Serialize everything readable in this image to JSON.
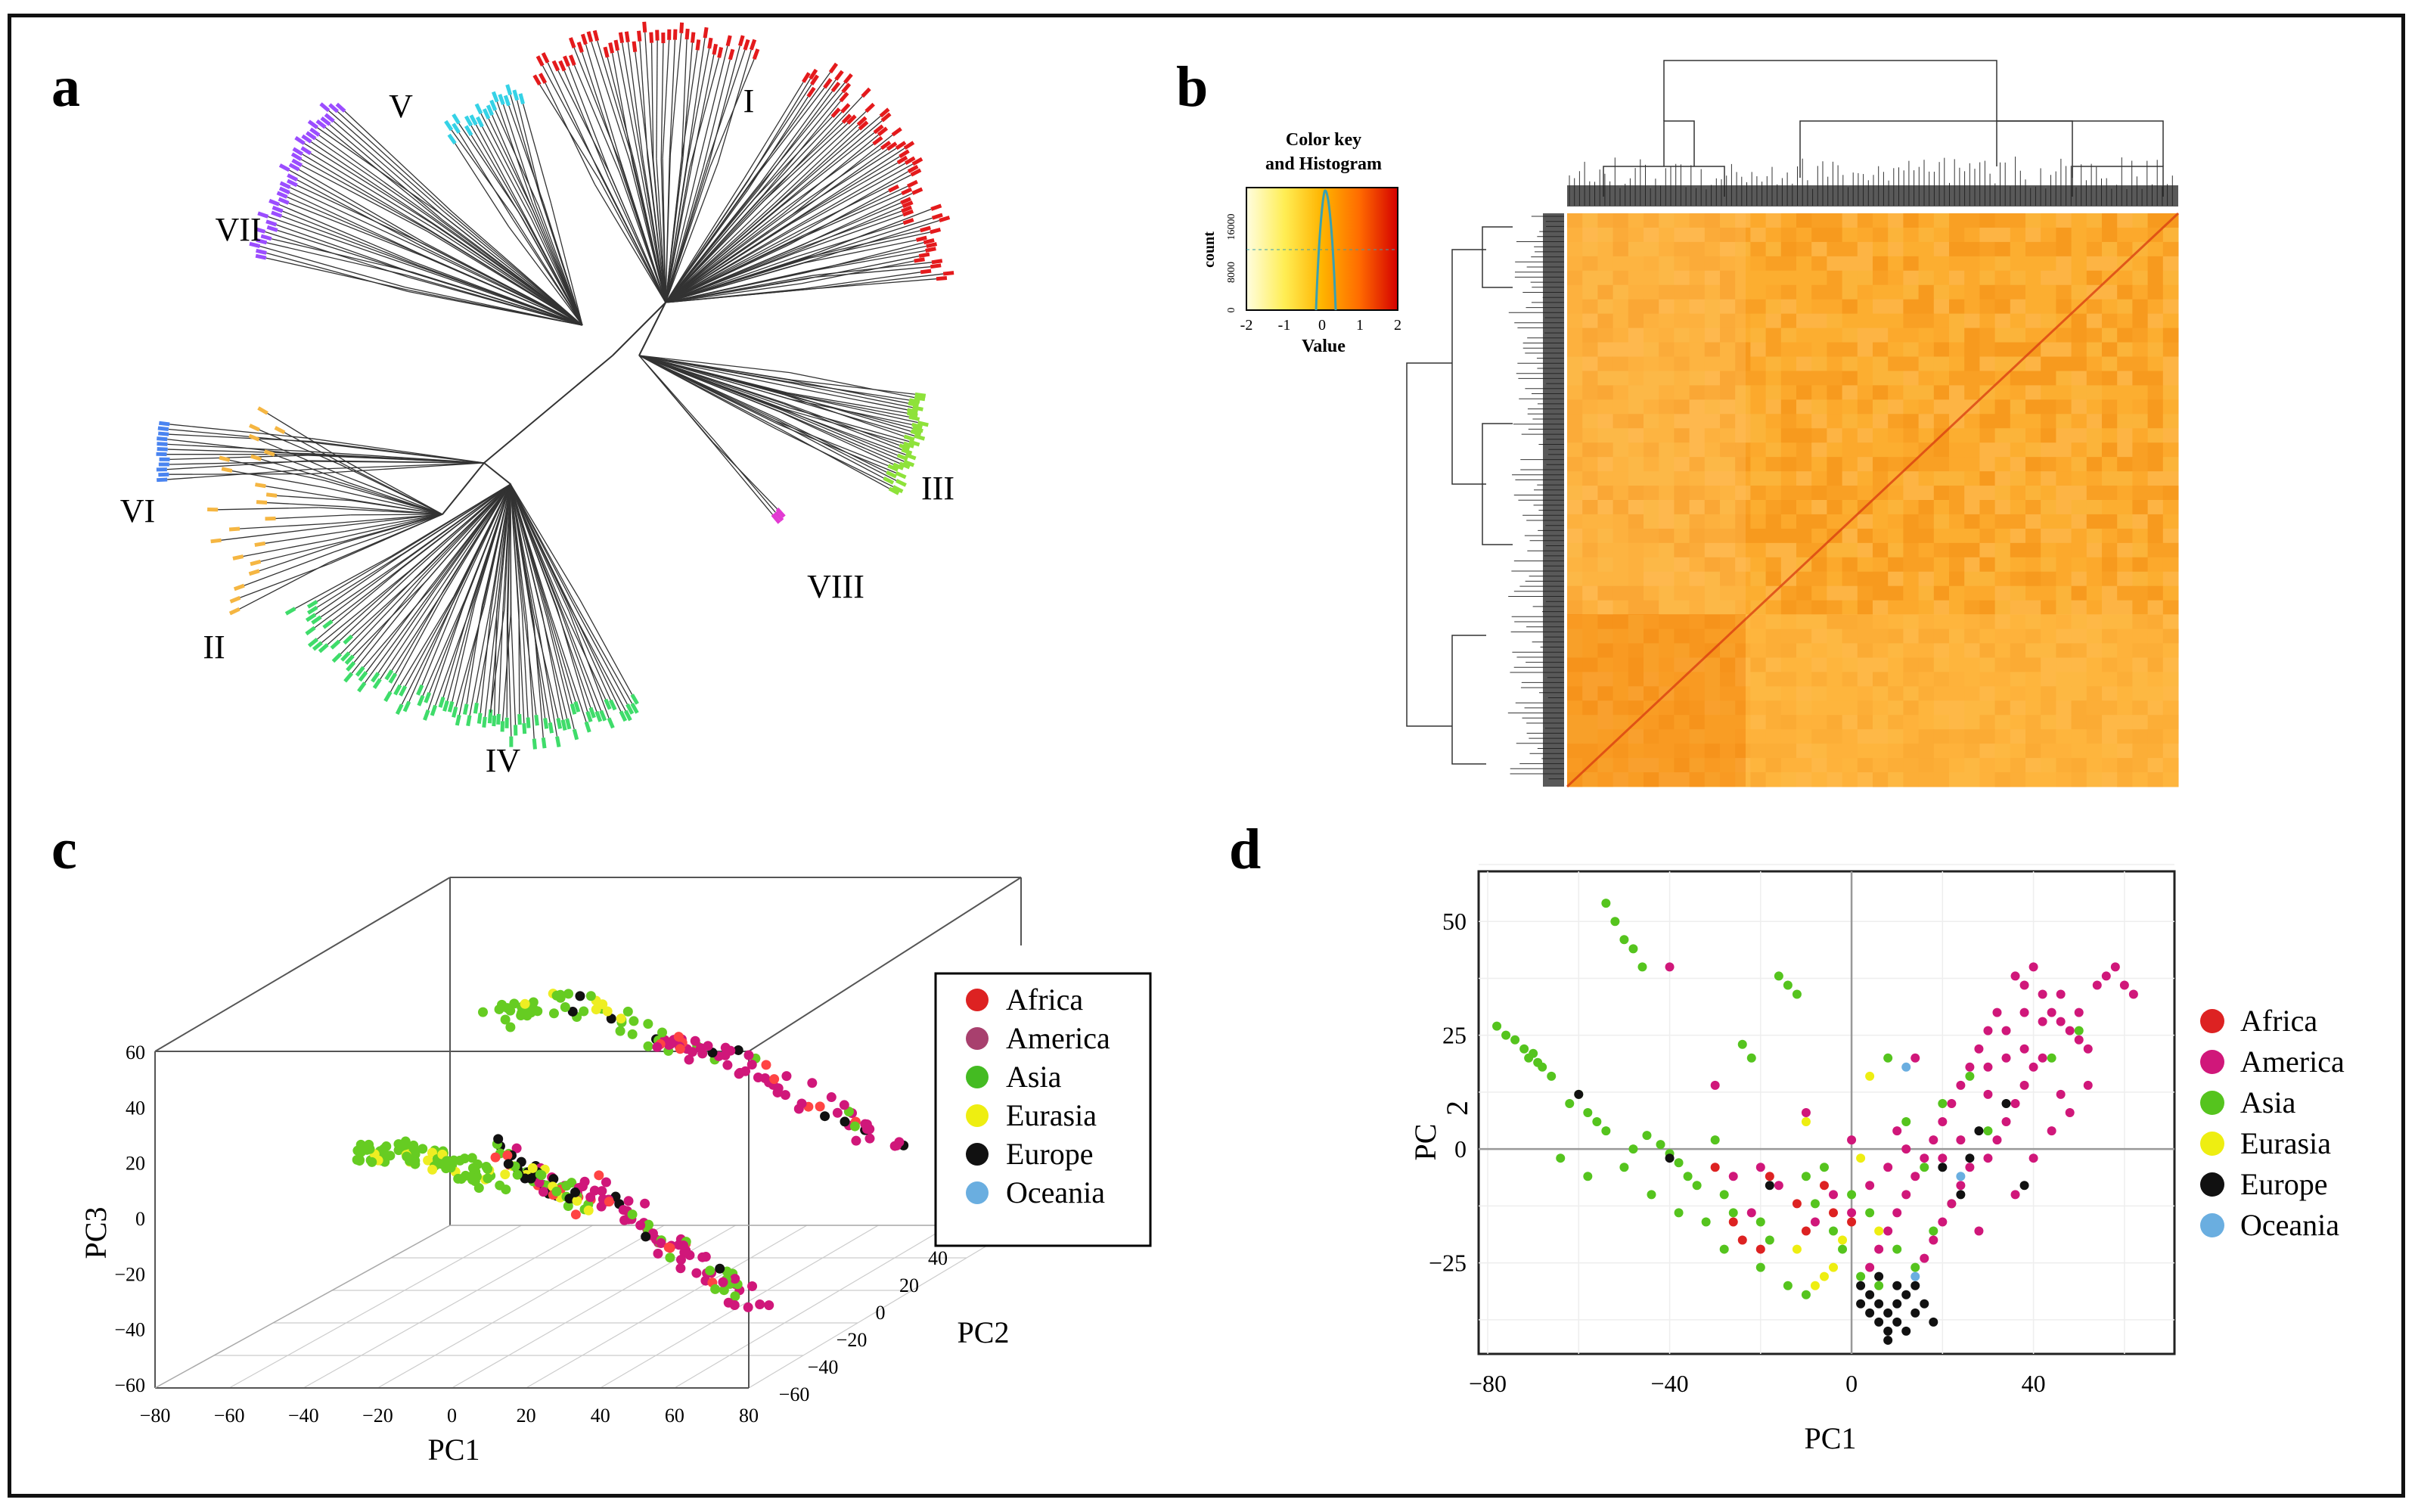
{
  "chart_data": [
    {
      "panel": "a",
      "type": "dendrogram",
      "title": "",
      "clades": [
        {
          "name": "I",
          "color": "#e41a1c"
        },
        {
          "name": "II",
          "color": "#f5b642"
        },
        {
          "name": "III",
          "color": "#8ee23a"
        },
        {
          "name": "IV",
          "color": "#3fdc6a"
        },
        {
          "name": "V",
          "color": "#35d2e6"
        },
        {
          "name": "VI",
          "color": "#4a84f0"
        },
        {
          "name": "VII",
          "color": "#9b4dff"
        },
        {
          "name": "VIII",
          "color": "#e23ad2"
        }
      ]
    },
    {
      "panel": "b",
      "type": "heatmap",
      "title": "Color key and Histogram",
      "key_title_line1": "Color key",
      "key_title_line2": "and Histogram",
      "key_xlabel": "Value",
      "key_ylabel": "count",
      "key_x_ticks": [
        "-2",
        "-1",
        "0",
        "1",
        "2"
      ],
      "key_y_ticks": [
        "0",
        "8000",
        "16000"
      ],
      "xlim": [
        -2,
        2
      ],
      "colors": [
        "#fff7a0",
        "#ffd21f",
        "#ff9a00",
        "#e83000",
        "#d40000"
      ]
    },
    {
      "panel": "c",
      "type": "scatter",
      "title": "",
      "xlabel": "PC1",
      "ylabel": "PC3",
      "zlabel": "PC2",
      "x_ticks": [
        "−80",
        "−60",
        "−40",
        "−20",
        "0",
        "20",
        "40",
        "60",
        "80"
      ],
      "y_ticks": [
        "60",
        "40",
        "20",
        "0",
        "−20",
        "−40",
        "−60"
      ],
      "z_ticks": [
        "40",
        "20",
        "0",
        "−20",
        "−40",
        "−60"
      ],
      "xlim": [
        -80,
        80
      ],
      "ylim": [
        -60,
        60
      ],
      "zlim": [
        -60,
        40
      ],
      "legend": [
        {
          "label": "Africa",
          "color": "#dd2222"
        },
        {
          "label": "America",
          "color": "#a8406e"
        },
        {
          "label": "Asia",
          "color": "#44bb22"
        },
        {
          "label": "Eurasia",
          "color": "#eeee11"
        },
        {
          "label": "Europe",
          "color": "#111111"
        },
        {
          "label": "Oceania",
          "color": "#6aaee0"
        }
      ],
      "series_colors": {
        "Africa": "#ff4444",
        "America": "#d0177a",
        "Asia": "#66cc22",
        "Eurasia": "#eeee22",
        "Europe": "#111111",
        "Oceania": "#6aaee0"
      }
    },
    {
      "panel": "d",
      "type": "scatter",
      "title": "",
      "xlabel": "PC1",
      "ylabel_a": "PC",
      "ylabel_b": "2",
      "x_ticks": [
        "−80",
        "−40",
        "0",
        "40"
      ],
      "x_tick_values": [
        -80,
        -40,
        0,
        40
      ],
      "y_ticks": [
        "50",
        "25",
        "0",
        "−25"
      ],
      "y_tick_values": [
        50,
        25,
        0,
        -25
      ],
      "xlim": [
        -82,
        71
      ],
      "ylim": [
        -45,
        61
      ],
      "legend": [
        {
          "label": "Africa",
          "color": "#dd2222"
        },
        {
          "label": "America",
          "color": "#d0177a"
        },
        {
          "label": "Asia",
          "color": "#55c41e"
        },
        {
          "label": "Eurasia",
          "color": "#eeee11"
        },
        {
          "label": "Europe",
          "color": "#111111"
        },
        {
          "label": "Oceania",
          "color": "#6aaee0"
        }
      ],
      "series": [
        {
          "name": "Asia",
          "points": [
            [
              -78,
              27
            ],
            [
              -76,
              25
            ],
            [
              -74,
              24
            ],
            [
              -72,
              22
            ],
            [
              -71,
              20
            ],
            [
              -70,
              21
            ],
            [
              -69,
              19
            ],
            [
              -68,
              18
            ],
            [
              -60,
              12
            ],
            [
              -58,
              8
            ],
            [
              -56,
              6
            ],
            [
              -54,
              54
            ],
            [
              -52,
              50
            ],
            [
              -50,
              46
            ],
            [
              -48,
              44
            ],
            [
              -46,
              40
            ],
            [
              -45,
              3
            ],
            [
              -42,
              1
            ],
            [
              -40,
              -1
            ],
            [
              -38,
              -3
            ],
            [
              -36,
              -6
            ],
            [
              -34,
              -8
            ],
            [
              -30,
              2
            ],
            [
              -28,
              -10
            ],
            [
              -26,
              -14
            ],
            [
              -24,
              23
            ],
            [
              -22,
              20
            ],
            [
              -20,
              -16
            ],
            [
              -18,
              -20
            ],
            [
              -16,
              38
            ],
            [
              -14,
              36
            ],
            [
              -12,
              34
            ],
            [
              -10,
              -6
            ],
            [
              -8,
              -12
            ],
            [
              -4,
              -18
            ],
            [
              -2,
              -22
            ],
            [
              2,
              -28
            ],
            [
              6,
              -30
            ],
            [
              8,
              20
            ],
            [
              12,
              6
            ],
            [
              16,
              -4
            ],
            [
              20,
              10
            ],
            [
              26,
              16
            ],
            [
              30,
              4
            ],
            [
              44,
              20
            ],
            [
              50,
              26
            ],
            [
              -64,
              -2
            ],
            [
              -58,
              -6
            ],
            [
              -50,
              -4
            ],
            [
              -44,
              -10
            ],
            [
              -38,
              -14
            ],
            [
              -32,
              -16
            ],
            [
              -28,
              -22
            ],
            [
              -20,
              -26
            ],
            [
              -14,
              -30
            ],
            [
              -10,
              -32
            ],
            [
              -6,
              -4
            ],
            [
              0,
              -10
            ],
            [
              4,
              -14
            ],
            [
              10,
              -22
            ],
            [
              14,
              -26
            ],
            [
              18,
              -18
            ],
            [
              22,
              -12
            ],
            [
              -66,
              16
            ],
            [
              -62,
              10
            ],
            [
              -54,
              4
            ],
            [
              -48,
              0
            ]
          ]
        },
        {
          "name": "America",
          "points": [
            [
              36,
              38
            ],
            [
              38,
              36
            ],
            [
              40,
              40
            ],
            [
              42,
              34
            ],
            [
              44,
              30
            ],
            [
              46,
              28
            ],
            [
              48,
              26
            ],
            [
              50,
              24
            ],
            [
              52,
              22
            ],
            [
              54,
              36
            ],
            [
              56,
              38
            ],
            [
              58,
              40
            ],
            [
              60,
              36
            ],
            [
              62,
              34
            ],
            [
              32,
              30
            ],
            [
              30,
              26
            ],
            [
              28,
              22
            ],
            [
              26,
              18
            ],
            [
              24,
              14
            ],
            [
              22,
              10
            ],
            [
              20,
              6
            ],
            [
              18,
              2
            ],
            [
              16,
              -2
            ],
            [
              14,
              -6
            ],
            [
              12,
              -10
            ],
            [
              10,
              -14
            ],
            [
              8,
              -18
            ],
            [
              6,
              -22
            ],
            [
              4,
              -26
            ],
            [
              30,
              -2
            ],
            [
              32,
              2
            ],
            [
              34,
              6
            ],
            [
              36,
              10
            ],
            [
              38,
              14
            ],
            [
              40,
              18
            ],
            [
              42,
              20
            ],
            [
              26,
              -4
            ],
            [
              24,
              -8
            ],
            [
              22,
              -12
            ],
            [
              20,
              -16
            ],
            [
              18,
              -20
            ],
            [
              16,
              -24
            ],
            [
              -40,
              40
            ],
            [
              -30,
              14
            ],
            [
              -20,
              -4
            ],
            [
              -10,
              8
            ],
            [
              0,
              2
            ],
            [
              10,
              4
            ],
            [
              14,
              20
            ],
            [
              44,
              4
            ],
            [
              46,
              12
            ],
            [
              48,
              8
            ],
            [
              52,
              14
            ],
            [
              40,
              -2
            ],
            [
              36,
              -10
            ],
            [
              28,
              -18
            ],
            [
              34,
              26
            ],
            [
              38,
              22
            ],
            [
              30,
              12
            ],
            [
              24,
              2
            ],
            [
              20,
              -2
            ],
            [
              12,
              0
            ],
            [
              8,
              -4
            ],
            [
              4,
              -8
            ],
            [
              0,
              -14
            ],
            [
              -4,
              -10
            ],
            [
              -8,
              -16
            ],
            [
              -16,
              -8
            ],
            [
              -22,
              -14
            ],
            [
              -26,
              -6
            ],
            [
              50,
              30
            ],
            [
              46,
              34
            ],
            [
              42,
              28
            ],
            [
              38,
              30
            ],
            [
              34,
              20
            ],
            [
              30,
              18
            ]
          ]
        },
        {
          "name": "Europe",
          "points": [
            [
              2,
              -30
            ],
            [
              4,
              -32
            ],
            [
              6,
              -34
            ],
            [
              8,
              -36
            ],
            [
              10,
              -38
            ],
            [
              12,
              -40
            ],
            [
              14,
              -36
            ],
            [
              16,
              -34
            ],
            [
              6,
              -38
            ],
            [
              8,
              -40
            ],
            [
              10,
              -34
            ],
            [
              4,
              -36
            ],
            [
              12,
              -32
            ],
            [
              14,
              -30
            ],
            [
              6,
              -28
            ],
            [
              18,
              -38
            ],
            [
              2,
              -34
            ],
            [
              10,
              -30
            ],
            [
              -60,
              12
            ],
            [
              -40,
              -2
            ],
            [
              -18,
              -8
            ],
            [
              20,
              -4
            ],
            [
              24,
              -10
            ],
            [
              34,
              10
            ],
            [
              38,
              -8
            ],
            [
              28,
              4
            ],
            [
              26,
              -2
            ],
            [
              8,
              -42
            ]
          ]
        },
        {
          "name": "Eurasia",
          "points": [
            [
              -6,
              -28
            ],
            [
              -8,
              -30
            ],
            [
              -4,
              -26
            ],
            [
              2,
              -2
            ],
            [
              4,
              16
            ],
            [
              -10,
              6
            ],
            [
              -2,
              -20
            ],
            [
              6,
              -18
            ],
            [
              -12,
              -22
            ]
          ]
        },
        {
          "name": "Africa",
          "points": [
            [
              -26,
              -16
            ],
            [
              -20,
              -22
            ],
            [
              -12,
              -12
            ],
            [
              -6,
              -8
            ],
            [
              0,
              -16
            ],
            [
              -30,
              -4
            ],
            [
              -18,
              -6
            ],
            [
              -4,
              -14
            ],
            [
              -24,
              -20
            ],
            [
              -10,
              -18
            ]
          ]
        },
        {
          "name": "Oceania",
          "points": [
            [
              12,
              18
            ],
            [
              14,
              -28
            ],
            [
              24,
              -6
            ]
          ]
        }
      ]
    }
  ]
}
